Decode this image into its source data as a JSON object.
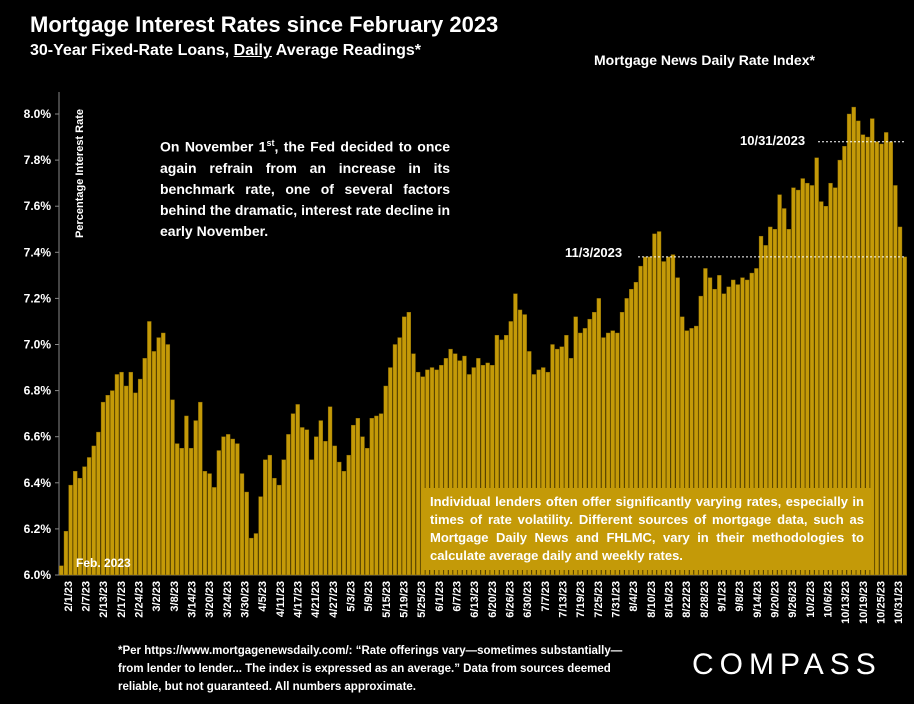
{
  "header": {
    "title": "Mortgage Interest Rates since February 2023",
    "subtitle_pre": "30-Year Fixed-Rate Loans, ",
    "subtitle_underlined": "Daily",
    "subtitle_post": " Average Readings*",
    "source_label": "Mortgage News Daily Rate Index*"
  },
  "annotation": {
    "text_pre": "On November 1",
    "text_sup": "st",
    "text_post": ", the Fed decided to once again refrain from an increase in its benchmark rate, one of several factors behind the dramatic, interest rate decline in early November."
  },
  "note_box": "Individual lenders often offer significantly varying rates, especially in times of rate volatility. Different sources of mortgage data, such as Mortgage Daily News and FHLMC, vary in their methodologies to calculate average daily and weekly rates.",
  "footnote": "*Per https://www.mortgagenewsdaily.com/: “Rate offerings vary—sometimes substantially—from lender to lender... The index is expressed as an average.” Data from sources deemed reliable, but not guaranteed. All numbers approximate.",
  "logo": "COMPASS",
  "colors": {
    "bar": "#c49a08",
    "bar_border": "#8a6a00",
    "background": "#000000",
    "text": "#ffffff"
  },
  "chart_data": {
    "type": "bar",
    "ylabel": "Percentage Interest Rate",
    "ylim": [
      6.0,
      8.0
    ],
    "yticks": [
      "6.0%",
      "6.2%",
      "6.4%",
      "6.6%",
      "6.8%",
      "7.0%",
      "7.2%",
      "7.4%",
      "7.6%",
      "7.8%",
      "8.0%"
    ],
    "corner_label": "Feb. 2023",
    "xtick_labels": [
      "2/1/23",
      "2/7/23",
      "2/13/23",
      "2/17/23",
      "2/24/23",
      "3/2/23",
      "3/8/23",
      "3/14/23",
      "3/20/23",
      "3/24/23",
      "3/30/23",
      "4/5/23",
      "4/11/23",
      "4/17/23",
      "4/21/23",
      "4/27/23",
      "5/3/23",
      "5/9/23",
      "5/15/23",
      "5/19/23",
      "5/25/23",
      "6/1/23",
      "6/7/23",
      "6/13/23",
      "6/20/23",
      "6/26/23",
      "6/30/23",
      "7/7/23",
      "7/13/23",
      "7/19/23",
      "7/25/23",
      "7/31/23",
      "8/4/23",
      "8/10/23",
      "8/16/23",
      "8/22/23",
      "8/28/23",
      "9/1/23",
      "9/8/23",
      "9/14/23",
      "9/20/23",
      "9/26/23",
      "10/2/23",
      "10/6/23",
      "10/13/23",
      "10/19/23",
      "10/25/23",
      "10/31/23"
    ],
    "values": [
      6.04,
      6.19,
      6.39,
      6.45,
      6.42,
      6.47,
      6.51,
      6.56,
      6.62,
      6.75,
      6.78,
      6.8,
      6.87,
      6.88,
      6.82,
      6.88,
      6.79,
      6.85,
      6.94,
      7.1,
      6.97,
      7.03,
      7.05,
      7.0,
      6.76,
      6.57,
      6.55,
      6.69,
      6.55,
      6.67,
      6.75,
      6.45,
      6.44,
      6.38,
      6.54,
      6.6,
      6.61,
      6.59,
      6.57,
      6.44,
      6.36,
      6.16,
      6.18,
      6.34,
      6.5,
      6.52,
      6.42,
      6.39,
      6.5,
      6.61,
      6.7,
      6.74,
      6.64,
      6.63,
      6.5,
      6.6,
      6.67,
      6.58,
      6.73,
      6.56,
      6.49,
      6.45,
      6.52,
      6.65,
      6.68,
      6.6,
      6.55,
      6.68,
      6.69,
      6.7,
      6.82,
      6.9,
      7.0,
      7.03,
      7.12,
      7.14,
      6.96,
      6.88,
      6.86,
      6.89,
      6.9,
      6.89,
      6.91,
      6.94,
      6.98,
      6.96,
      6.93,
      6.95,
      6.87,
      6.9,
      6.94,
      6.91,
      6.92,
      6.91,
      7.04,
      7.02,
      7.04,
      7.1,
      7.22,
      7.15,
      7.13,
      6.97,
      6.87,
      6.89,
      6.9,
      6.88,
      7.0,
      6.98,
      6.99,
      7.04,
      6.94,
      7.12,
      7.05,
      7.07,
      7.11,
      7.14,
      7.2,
      7.03,
      7.05,
      7.06,
      7.05,
      7.14,
      7.2,
      7.24,
      7.27,
      7.34,
      7.38,
      7.38,
      7.48,
      7.49,
      7.36,
      7.38,
      7.39,
      7.29,
      7.12,
      7.06,
      7.07,
      7.08,
      7.21,
      7.33,
      7.29,
      7.24,
      7.3,
      7.22,
      7.25,
      7.28,
      7.26,
      7.29,
      7.28,
      7.31,
      7.33,
      7.47,
      7.43,
      7.51,
      7.5,
      7.65,
      7.59,
      7.5,
      7.68,
      7.67,
      7.72,
      7.7,
      7.69,
      7.81,
      7.62,
      7.6,
      7.7,
      7.68,
      7.8,
      7.86,
      8.0,
      8.03,
      7.97,
      7.91,
      7.9,
      7.98,
      7.88,
      7.87,
      7.92,
      7.88,
      7.69,
      7.51,
      7.38
    ],
    "annotations": [
      {
        "label": "10/31/2023",
        "value": 7.88
      },
      {
        "label": "11/3/2023",
        "value": 7.38
      }
    ]
  }
}
